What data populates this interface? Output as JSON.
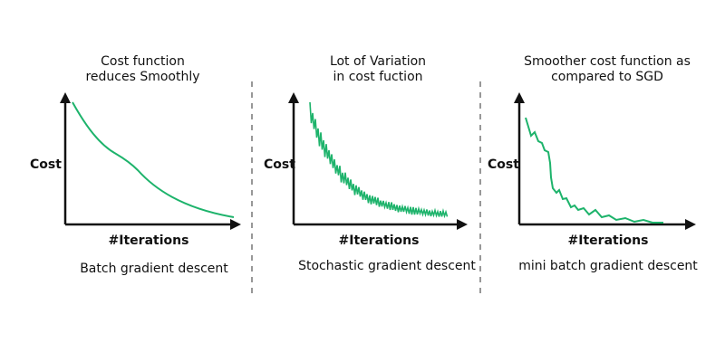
{
  "panels": [
    {
      "caption_line1": "Cost function",
      "caption_line2": "reduces Smoothly",
      "ylabel": "Cost",
      "xlabel": "#Iterations",
      "method": "Batch gradient descent"
    },
    {
      "caption_line1": "Lot of Variation",
      "caption_line2": "in cost fuction",
      "ylabel": "Cost",
      "xlabel": "#Iterations",
      "method": "Stochastic gradient descent"
    },
    {
      "caption_line1": "Smoother cost function as",
      "caption_line2": "compared to SGD",
      "ylabel": "Cost",
      "xlabel": "#Iterations",
      "method": "mini batch gradient descent"
    }
  ],
  "colors": {
    "curve": "#1db36b",
    "axis": "#111111",
    "divider": "#777777"
  }
}
